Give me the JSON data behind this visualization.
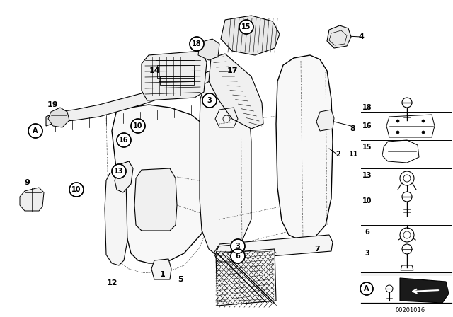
{
  "bg_color": "#ffffff",
  "lc": "#000000",
  "tc": "#000000",
  "diagram_number": "00201016",
  "figsize": [
    6.4,
    4.48
  ],
  "dpi": 100
}
